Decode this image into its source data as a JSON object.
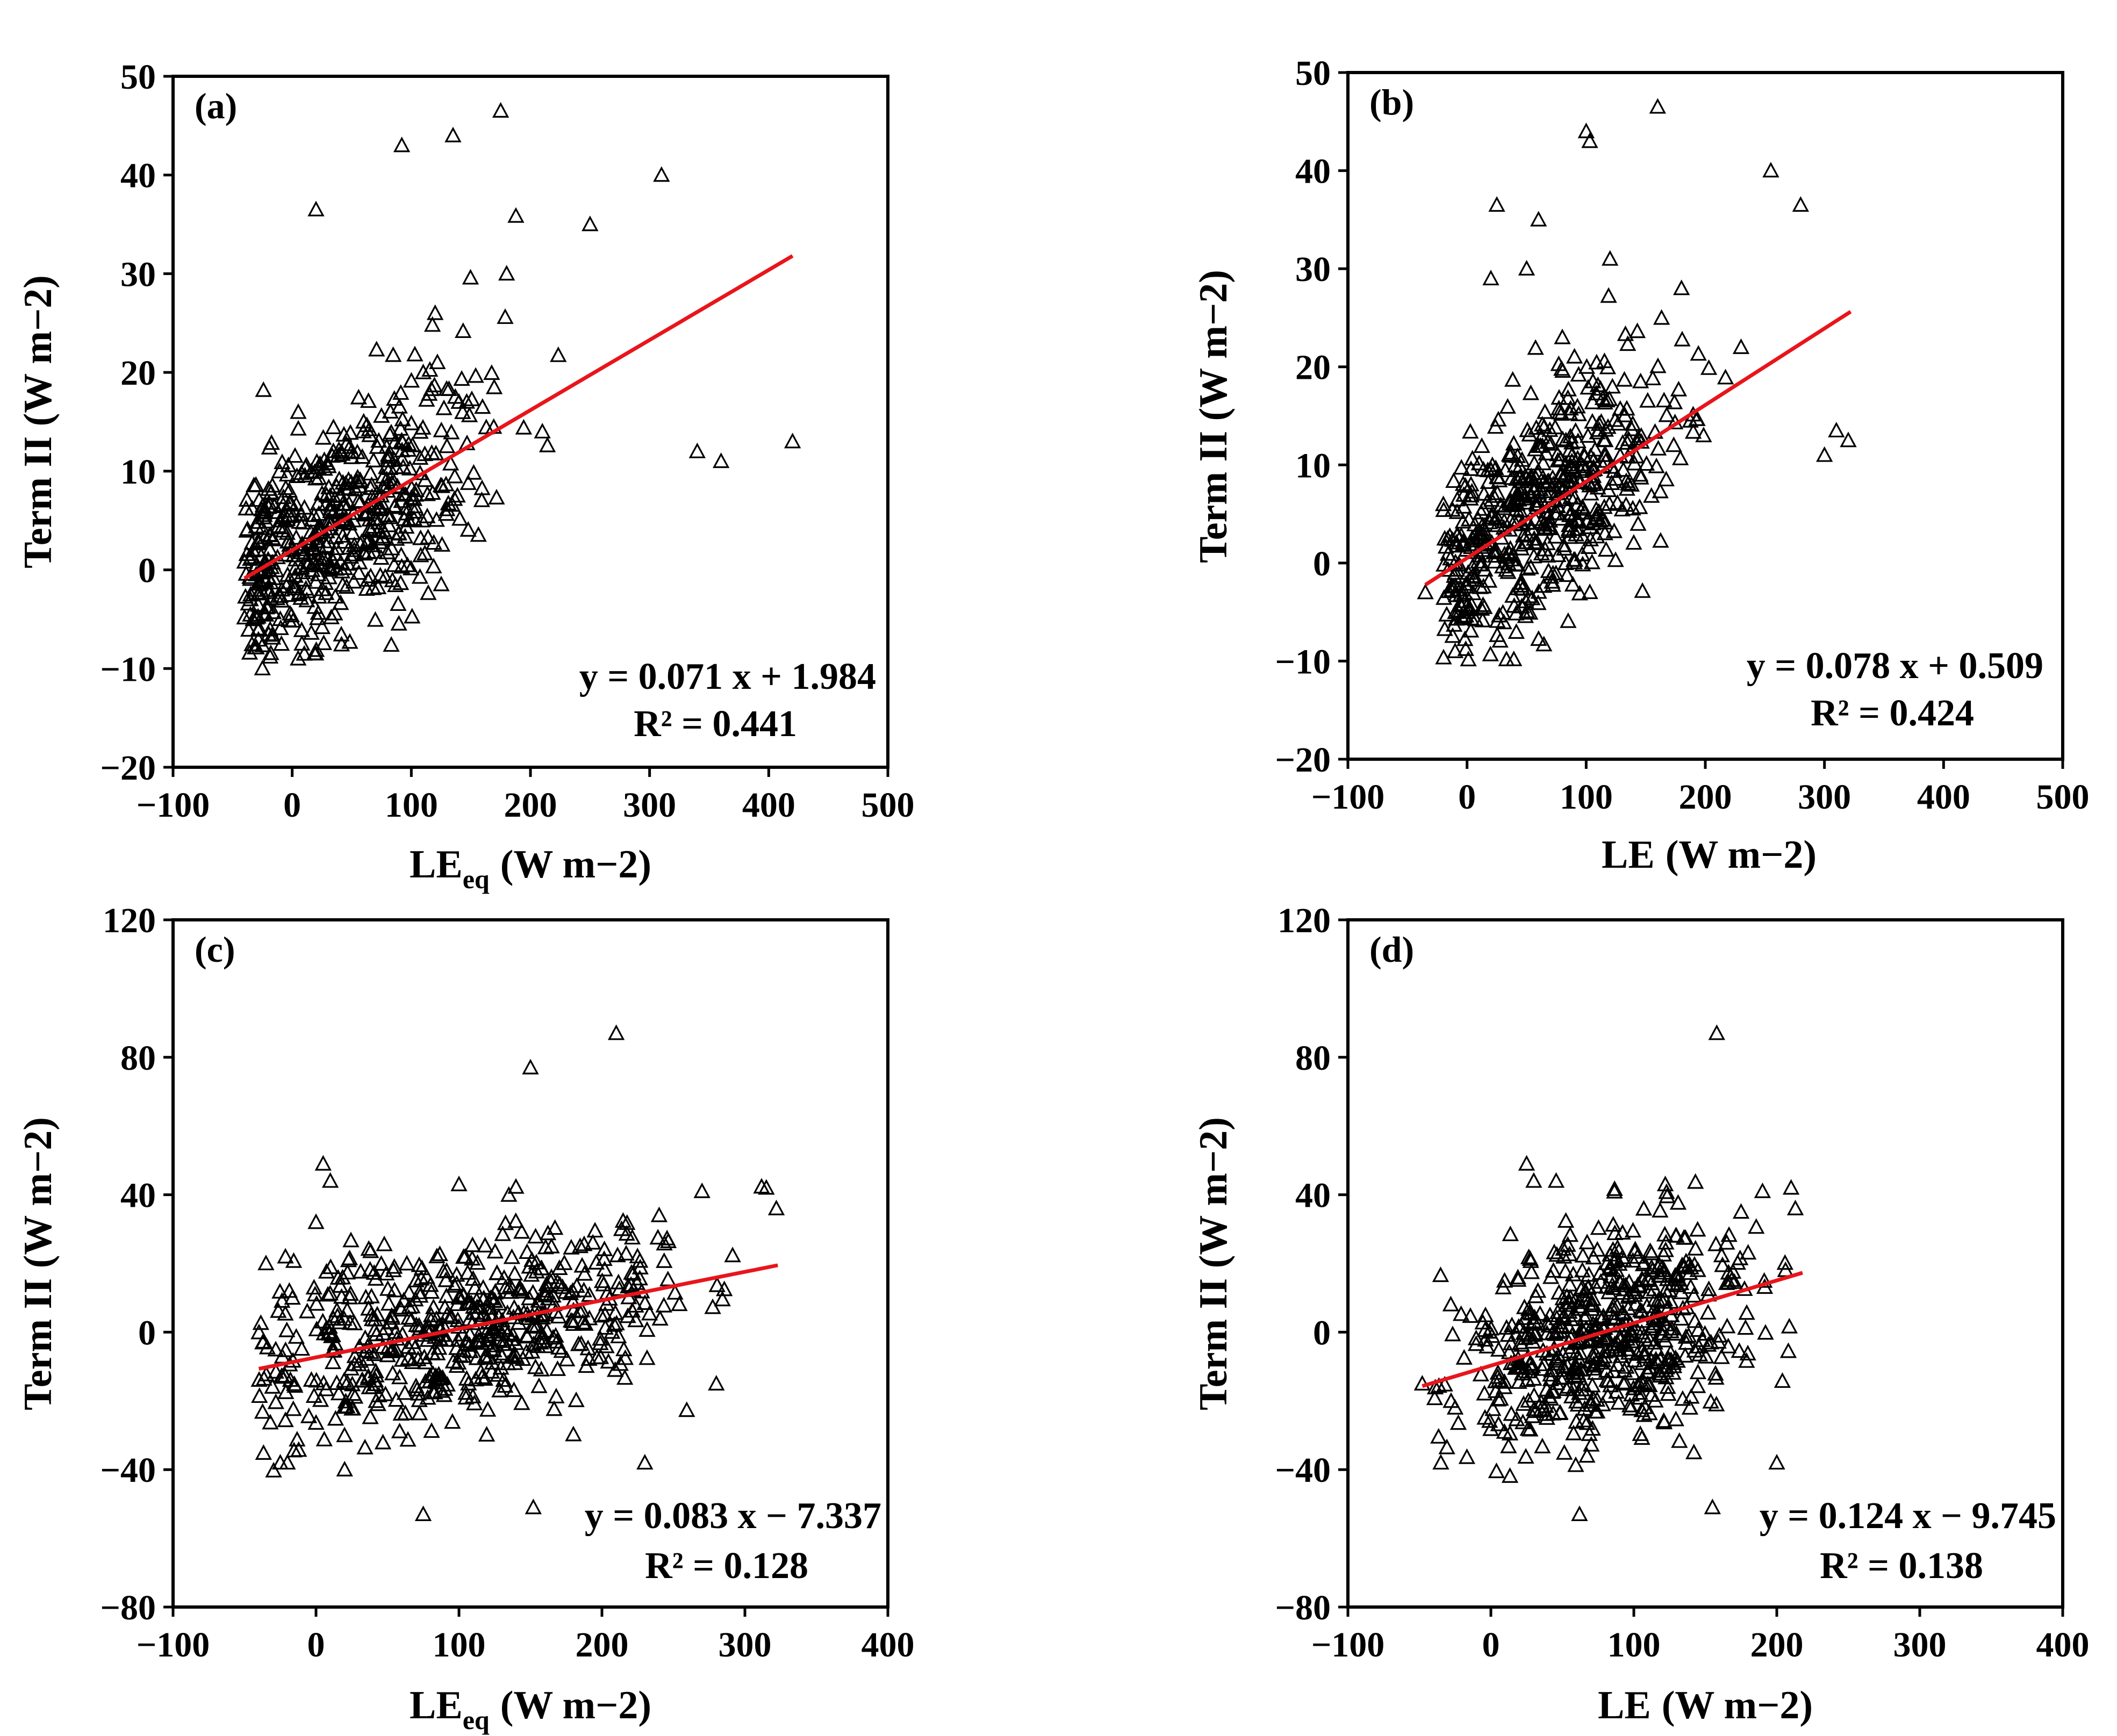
{
  "chart_data": [
    {
      "type": "scatter",
      "panel_label": "(a)",
      "xlabel_main": "LE",
      "xlabel_sub": "eq",
      "xlabel_unit": "(W m−2)",
      "ylabel": "Term II (W m−2)",
      "xlim": [
        -100,
        500
      ],
      "ylim": [
        -20,
        50
      ],
      "xticks": [
        "−100",
        "0",
        "100",
        "200",
        "300",
        "400",
        "500"
      ],
      "yticks": [
        "−20",
        "−10",
        "0",
        "10",
        "20",
        "30",
        "40",
        "50"
      ],
      "fit": {
        "slope": 0.071,
        "intercept": 1.984,
        "x_range": [
          -40,
          420
        ],
        "color": "#e8151b"
      },
      "equation": "y = 0.071 x + 1.984",
      "r2": "R² = 0.441",
      "marker": "open-triangle",
      "sample_points": {
        "x": [
          -35,
          -20,
          -10,
          0,
          10,
          30,
          50,
          80,
          110,
          140,
          180,
          210,
          250,
          310,
          340,
          360,
          420,
          92,
          135,
          175,
          20,
          -25,
          5,
          60,
          120
        ],
        "y": [
          -3,
          0,
          -5,
          2,
          -1,
          5,
          12,
          8,
          20,
          17,
          30,
          14,
          35,
          40,
          12,
          11,
          13,
          43,
          44,
          46.5,
          36.5,
          -10,
          -9,
          15,
          26
        ]
      },
      "cluster": {
        "x_mu": 40,
        "x_sd": 60,
        "x_min": -40,
        "x_max": 300,
        "slope": 0.071,
        "intercept": 1.984,
        "noise_sd": 5.5,
        "n": 560,
        "y_min": -10,
        "y_max": 38,
        "seed": 11
      }
    },
    {
      "type": "scatter",
      "panel_label": "(b)",
      "xlabel_main": "LE",
      "xlabel_sub": "",
      "xlabel_unit": "(W m−2)",
      "ylabel": "Term II (W m−2)",
      "xlim": [
        -100,
        500
      ],
      "ylim": [
        -20,
        50
      ],
      "xticks": [
        "−100",
        "0",
        "100",
        "200",
        "300",
        "400",
        "500"
      ],
      "yticks": [
        "−20",
        "−10",
        "0",
        "10",
        "20",
        "30",
        "40",
        "50"
      ],
      "fit": {
        "slope": 0.078,
        "intercept": 0.509,
        "x_range": [
          -35,
          322
        ],
        "color": "#e8151b"
      },
      "equation": "y = 0.078 x + 0.509",
      "r2": "R² = 0.424",
      "marker": "open-triangle",
      "sample_points": {
        "x": [
          -35,
          -10,
          0,
          10,
          25,
          60,
          100,
          103,
          160,
          255,
          280,
          300,
          320,
          310,
          180,
          230,
          120,
          80,
          20,
          50
        ],
        "y": [
          -3,
          -9,
          -5,
          3,
          36.5,
          35,
          44,
          43,
          46.5,
          40,
          36.5,
          11,
          12.5,
          13.5,
          28,
          22,
          31,
          23,
          29,
          30
        ]
      },
      "cluster": {
        "x_mu": 60,
        "x_sd": 55,
        "x_min": -20,
        "x_max": 300,
        "slope": 0.078,
        "intercept": 0.509,
        "noise_sd": 5.5,
        "n": 560,
        "y_min": -10,
        "y_max": 35,
        "seed": 23
      }
    },
    {
      "type": "scatter",
      "panel_label": "(c)",
      "xlabel_main": "LE",
      "xlabel_sub": "eq",
      "xlabel_unit": "(W m−2)",
      "ylabel": "Term II (W m−2)",
      "xlim": [
        -100,
        400
      ],
      "ylim": [
        -80,
        120
      ],
      "xticks": [
        "−100",
        "0",
        "100",
        "200",
        "300",
        "400"
      ],
      "yticks": [
        "−80",
        "−40",
        "0",
        "40",
        "80",
        "120"
      ],
      "fit": {
        "slope": 0.083,
        "intercept": -7.337,
        "x_range": [
          -40,
          323
        ],
        "color": "#e8151b"
      },
      "equation": "y = 0.083 x − 7.337",
      "r2": "R² = 0.128",
      "marker": "open-triangle",
      "sample_points": {
        "x": [
          -35,
          -25,
          5,
          10,
          20,
          75,
          150,
          210,
          152,
          270,
          315,
          322,
          280,
          230,
          240,
          100,
          -20,
          0
        ],
        "y": [
          20,
          -38,
          49,
          44,
          -40,
          -53,
          77,
          87,
          -51,
          41,
          42,
          36,
          -15,
          -38,
          34,
          43,
          -38,
          32
        ]
      },
      "cluster": {
        "x_mu": 100,
        "x_sd": 70,
        "x_min": -40,
        "x_max": 320,
        "slope": 0.083,
        "intercept": -7.337,
        "noise_sd": 14,
        "n": 600,
        "y_min": -42,
        "y_max": 45,
        "seed": 37
      }
    },
    {
      "type": "scatter",
      "panel_label": "(d)",
      "xlabel_main": "LE",
      "xlabel_sub": "",
      "xlabel_unit": "(W m−2)",
      "ylabel": "Term II (W m−2)",
      "xlim": [
        -100,
        400
      ],
      "ylim": [
        -80,
        120
      ],
      "xticks": [
        "−100",
        "0",
        "100",
        "200",
        "300",
        "400"
      ],
      "yticks": [
        "−80",
        "−40",
        "0",
        "40",
        "80",
        "120"
      ],
      "fit": {
        "slope": 0.124,
        "intercept": -9.745,
        "x_range": [
          -48,
          218
        ],
        "color": "#e8151b"
      },
      "equation": "y = 0.124 x − 9.745",
      "r2": "R² = 0.138",
      "marker": "open-triangle",
      "sample_points": {
        "x": [
          -48,
          -35,
          -25,
          25,
          30,
          62,
          122,
          142,
          155,
          158,
          210,
          200,
          213,
          190,
          165,
          175
        ],
        "y": [
          -15,
          -38,
          -22,
          49,
          44,
          -53,
          43,
          -35,
          -51,
          87,
          42,
          -38,
          36,
          41,
          26,
          35
        ]
      },
      "cluster": {
        "x_mu": 80,
        "x_sd": 50,
        "x_min": -40,
        "x_max": 215,
        "slope": 0.124,
        "intercept": -9.745,
        "noise_sd": 15,
        "n": 620,
        "y_min": -42,
        "y_max": 45,
        "seed": 51
      }
    }
  ]
}
